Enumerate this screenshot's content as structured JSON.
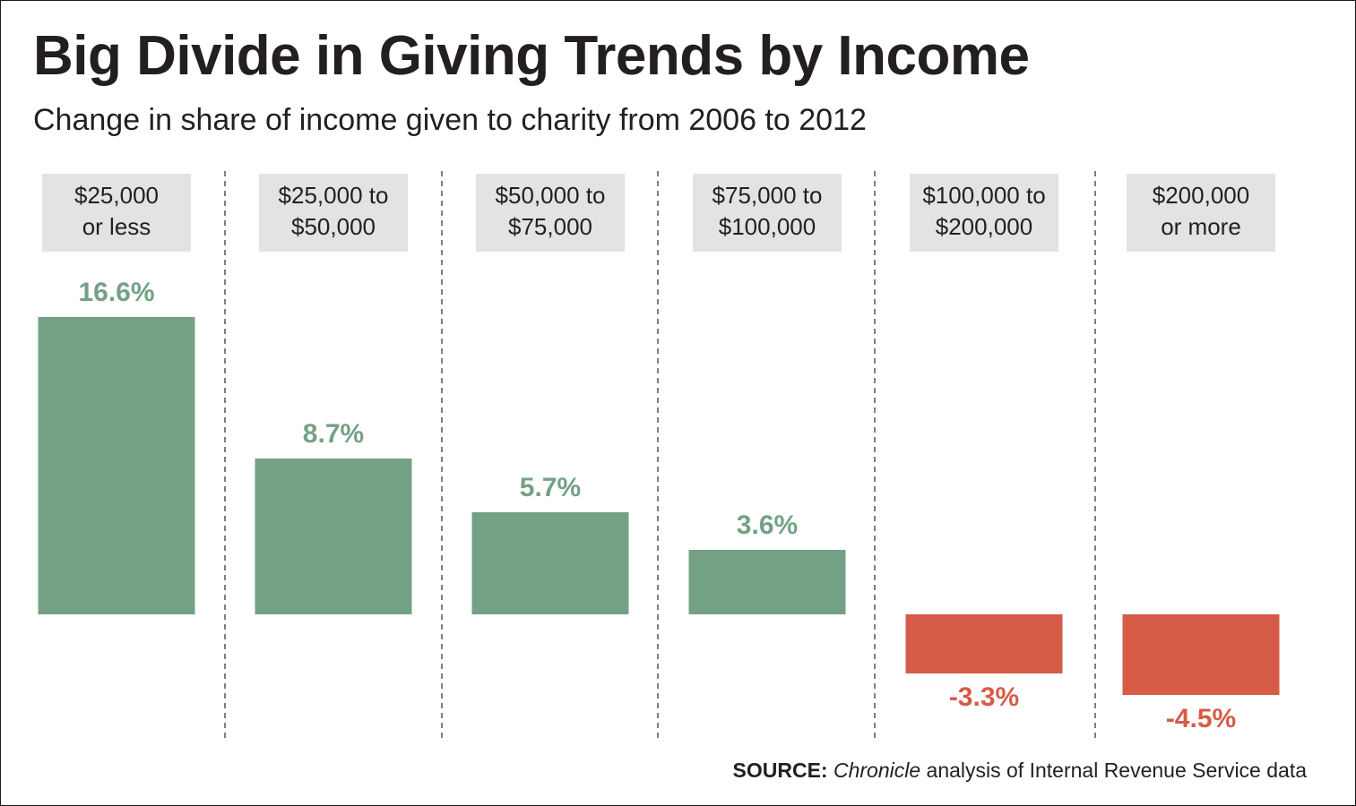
{
  "title": "Big Divide in Giving Trends by Income",
  "subtitle": "Change in share of income given to charity from 2006 to 2012",
  "source": {
    "label": "SOURCE:",
    "italic": "Chronicle",
    "rest": " analysis of Internal Revenue Service data"
  },
  "colors": {
    "positive": "#74a186",
    "negative": "#d65c48",
    "header_bg": "#e3e3e3",
    "divider": "#555555",
    "text": "#231f20"
  },
  "chart_data": {
    "type": "bar",
    "categories": [
      [
        "$25,000",
        "or less"
      ],
      [
        "$25,000 to",
        "$50,000"
      ],
      [
        "$50,000 to",
        "$75,000"
      ],
      [
        "$75,000 to",
        "$100,000"
      ],
      [
        "$100,000 to",
        "$200,000"
      ],
      [
        "$200,000",
        "or more"
      ]
    ],
    "values": [
      16.6,
      8.7,
      5.7,
      3.6,
      -3.3,
      -4.5
    ],
    "value_labels": [
      "16.6%",
      "8.7%",
      "5.7%",
      "3.6%",
      "-3.3%",
      "-4.5%"
    ],
    "title": "Big Divide in Giving Trends by Income",
    "subtitle": "Change in share of income given to charity from 2006 to 2012",
    "grid": false
  }
}
